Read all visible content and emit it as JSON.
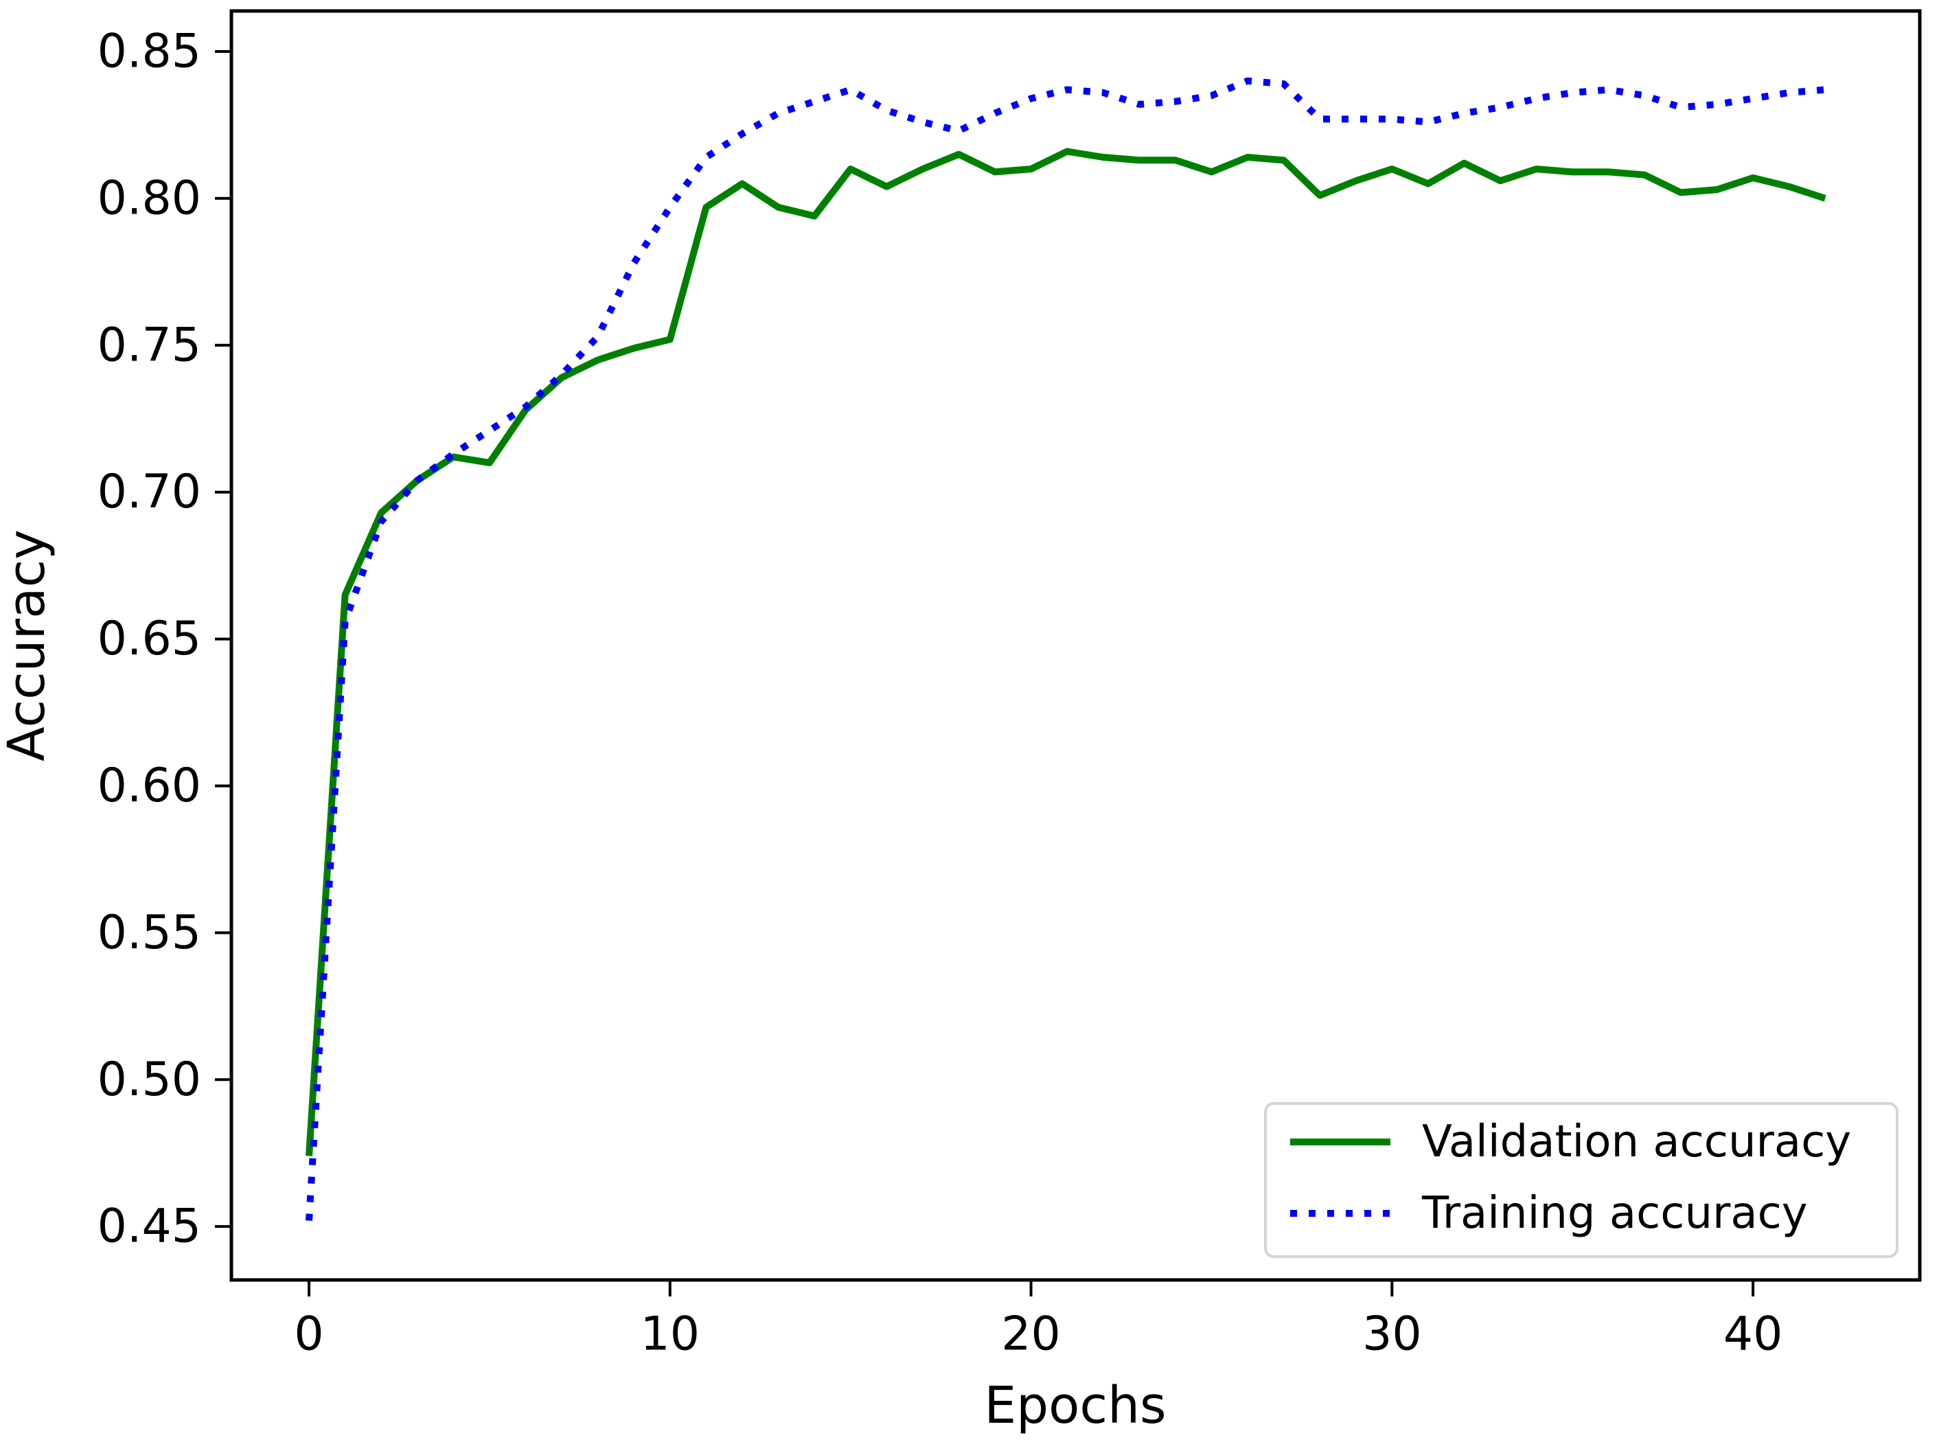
{
  "figure": {
    "background": "#ffffff",
    "frame_color": "#000000"
  },
  "chart_data": {
    "type": "line",
    "title": "",
    "xlabel": "Epochs",
    "ylabel": "Accuracy",
    "grid": false,
    "xlim": [
      -2.15,
      44.62
    ],
    "ylim": [
      0.4318,
      0.8638
    ],
    "x_ticks": [
      0,
      10,
      20,
      30,
      40
    ],
    "x_tick_labels": [
      "0",
      "10",
      "20",
      "30",
      "40"
    ],
    "y_ticks": [
      0.45,
      0.5,
      0.55,
      0.6,
      0.65,
      0.7,
      0.75,
      0.8,
      0.85
    ],
    "y_tick_labels": [
      "0.45",
      "0.50",
      "0.55",
      "0.60",
      "0.65",
      "0.70",
      "0.75",
      "0.80",
      "0.85"
    ],
    "x": [
      0,
      1,
      2,
      3,
      4,
      5,
      6,
      7,
      8,
      9,
      10,
      11,
      12,
      13,
      14,
      15,
      16,
      17,
      18,
      19,
      20,
      21,
      22,
      23,
      24,
      25,
      26,
      27,
      28,
      29,
      30,
      31,
      32,
      33,
      34,
      35,
      36,
      37,
      38,
      39,
      40,
      41,
      42
    ],
    "series": [
      {
        "name": "Validation accuracy",
        "color": "#008000",
        "linestyle": "solid",
        "values": [
          0.474,
          0.665,
          0.693,
          0.704,
          0.712,
          0.71,
          0.728,
          0.739,
          0.745,
          0.749,
          0.752,
          0.797,
          0.805,
          0.797,
          0.794,
          0.81,
          0.804,
          0.81,
          0.815,
          0.809,
          0.81,
          0.816,
          0.814,
          0.813,
          0.813,
          0.809,
          0.814,
          0.813,
          0.801,
          0.806,
          0.81,
          0.805,
          0.812,
          0.806,
          0.81,
          0.809,
          0.809,
          0.808,
          0.802,
          0.803,
          0.807,
          0.804,
          0.8
        ]
      },
      {
        "name": "Training accuracy",
        "color": "#0000ff",
        "linestyle": "dotted",
        "values": [
          0.452,
          0.656,
          0.69,
          0.704,
          0.713,
          0.721,
          0.729,
          0.74,
          0.753,
          0.778,
          0.797,
          0.814,
          0.822,
          0.829,
          0.833,
          0.837,
          0.83,
          0.826,
          0.823,
          0.829,
          0.834,
          0.837,
          0.836,
          0.832,
          0.833,
          0.835,
          0.84,
          0.839,
          0.827,
          0.827,
          0.827,
          0.826,
          0.829,
          0.831,
          0.834,
          0.836,
          0.837,
          0.835,
          0.831,
          0.832,
          0.834,
          0.836,
          0.837
        ]
      }
    ],
    "legend": {
      "position": "lower right",
      "entries": [
        "Validation accuracy",
        "Training accuracy"
      ]
    }
  }
}
